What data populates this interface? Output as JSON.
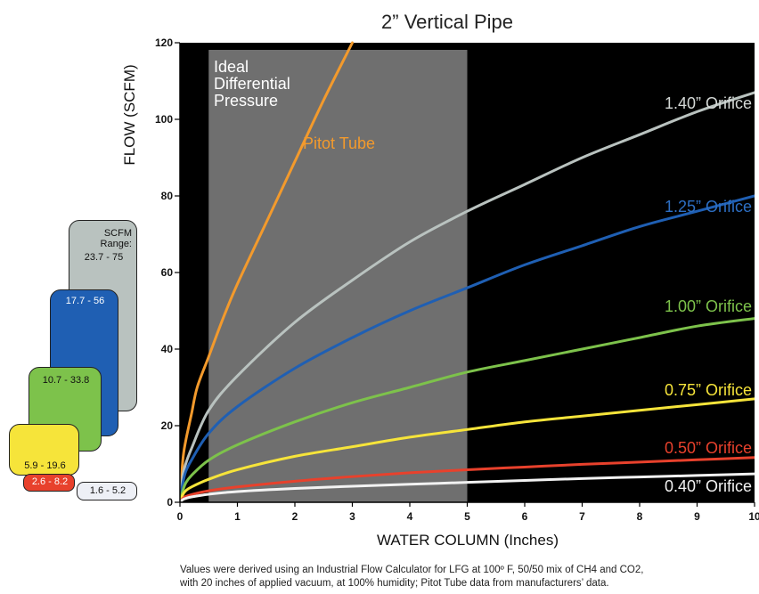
{
  "title": "2” Vertical Pipe",
  "footnote": [
    "Values were derived using an Industrial Flow Calculator for LFG at 100º F, 50/50 mix of CH4 and CO2,",
    "with 20 inches of applied vacuum, at 100% humidity; Pitot Tube data from manufacturers’ data."
  ],
  "annotations": {
    "band": [
      "Ideal",
      "Differential",
      "Pressure"
    ],
    "pitot": "Pitot Tube"
  },
  "range_cards": {
    "header": [
      "SCFM",
      "Range:"
    ],
    "cards": [
      {
        "series": "1.40” Orifice",
        "range": "23.7 - 75",
        "color": "#b9c2bf"
      },
      {
        "series": "1.25” Orifice",
        "range": "17.7 - 56",
        "color": "#1f5fb3"
      },
      {
        "series": "1.00” Orifice",
        "range": "10.7 - 33.8",
        "color": "#7dc24b"
      },
      {
        "series": "0.75” Orifice",
        "range": "5.9 - 19.6",
        "color": "#f6e43a"
      },
      {
        "series": "0.50” Orifice",
        "range": "2.6 - 8.2",
        "color": "#e8412c"
      },
      {
        "series": "0.40” Orifice",
        "range": "1.6 - 5.2",
        "color": "#eef0f6"
      }
    ]
  },
  "chart_data": {
    "type": "line",
    "title": "2” Vertical Pipe",
    "xlabel": "WATER COLUMN (Inches)",
    "ylabel": "FLOW (SCFM)",
    "xlim": [
      0,
      10
    ],
    "ylim": [
      0,
      120
    ],
    "xticks": [
      "0",
      "1",
      "2",
      "3",
      "4",
      "5",
      "6",
      "7",
      "8",
      "9",
      "10"
    ],
    "yticks": [
      "0",
      "20",
      "40",
      "60",
      "80",
      "100",
      "120"
    ],
    "grid": false,
    "background": "#000000",
    "shaded_band": {
      "x_from": 0.5,
      "x_to": 5,
      "color": "#6f6f6f"
    },
    "series": [
      {
        "name": "Pitot Tube",
        "color": "#f39a2c",
        "x": [
          0,
          0.05,
          0.1,
          0.2,
          0.3,
          0.5,
          0.75,
          1,
          1.5,
          2,
          2.5,
          3
        ],
        "y": [
          0,
          11,
          16,
          23,
          30,
          38,
          48,
          57,
          73,
          89,
          105,
          120
        ]
      },
      {
        "name": "1.40” Orifice",
        "color": "#b9c2bf",
        "x": [
          0,
          0.05,
          0.1,
          0.2,
          0.5,
          1,
          2,
          3,
          4,
          5,
          6,
          7,
          8,
          9,
          10
        ],
        "y": [
          0,
          7,
          10,
          14,
          24,
          33,
          47,
          58,
          68,
          76,
          83,
          90,
          96,
          102,
          107
        ]
      },
      {
        "name": "1.25” Orifice",
        "color": "#1f5fb3",
        "x": [
          0,
          0.05,
          0.1,
          0.2,
          0.5,
          1,
          2,
          3,
          4,
          5,
          6,
          7,
          8,
          9,
          10
        ],
        "y": [
          0,
          5,
          8,
          11,
          18,
          25,
          35,
          43,
          50,
          56,
          62,
          67,
          72,
          76,
          80
        ]
      },
      {
        "name": "1.00” Orifice",
        "color": "#7dc24b",
        "x": [
          0,
          0.05,
          0.1,
          0.2,
          0.5,
          1,
          2,
          3,
          4,
          5,
          6,
          7,
          8,
          9,
          10
        ],
        "y": [
          0,
          3,
          5,
          7,
          11,
          15,
          21,
          26,
          30,
          34,
          37,
          40,
          43,
          46,
          48
        ]
      },
      {
        "name": "0.75” Orifice",
        "color": "#f6e43a",
        "x": [
          0,
          0.05,
          0.1,
          0.2,
          0.5,
          1,
          2,
          3,
          4,
          5,
          6,
          7,
          8,
          9,
          10
        ],
        "y": [
          0,
          2,
          3,
          4,
          6,
          8.5,
          12,
          14.5,
          17,
          19,
          21,
          22.5,
          24,
          25.5,
          27
        ]
      },
      {
        "name": "0.50” Orifice",
        "color": "#e8412c",
        "x": [
          0,
          0.05,
          0.1,
          0.2,
          0.5,
          1,
          2,
          3,
          4,
          5,
          6,
          7,
          8,
          9,
          10
        ],
        "y": [
          0,
          1,
          1.5,
          2,
          3,
          4,
          5.5,
          6.7,
          7.7,
          8.5,
          9.2,
          9.9,
          10.5,
          11.1,
          11.7
        ]
      },
      {
        "name": "0.40” Orifice",
        "color": "#f2f2f2",
        "x": [
          0,
          0.05,
          0.1,
          0.2,
          0.5,
          1,
          2,
          3,
          4,
          5,
          6,
          7,
          8,
          9,
          10
        ],
        "y": [
          0,
          0.7,
          1,
          1.4,
          2.1,
          2.8,
          3.6,
          4.2,
          4.7,
          5.2,
          5.7,
          6.2,
          6.6,
          7.0,
          7.4
        ]
      }
    ],
    "curve_labels": [
      {
        "text": "1.40” Orifice",
        "color": "#d4d8d6",
        "y": 104
      },
      {
        "text": "1.25” Orifice",
        "color": "#2d6fc4",
        "y": 77
      },
      {
        "text": "1.00” Orifice",
        "color": "#7dc24b",
        "y": 51
      },
      {
        "text": "0.75” Orifice",
        "color": "#f6e43a",
        "y": 29
      },
      {
        "text": "0.50” Orifice",
        "color": "#e8412c",
        "y": 14
      },
      {
        "text": "0.40” Orifice",
        "color": "#f2f2f2",
        "y": 4
      }
    ]
  }
}
